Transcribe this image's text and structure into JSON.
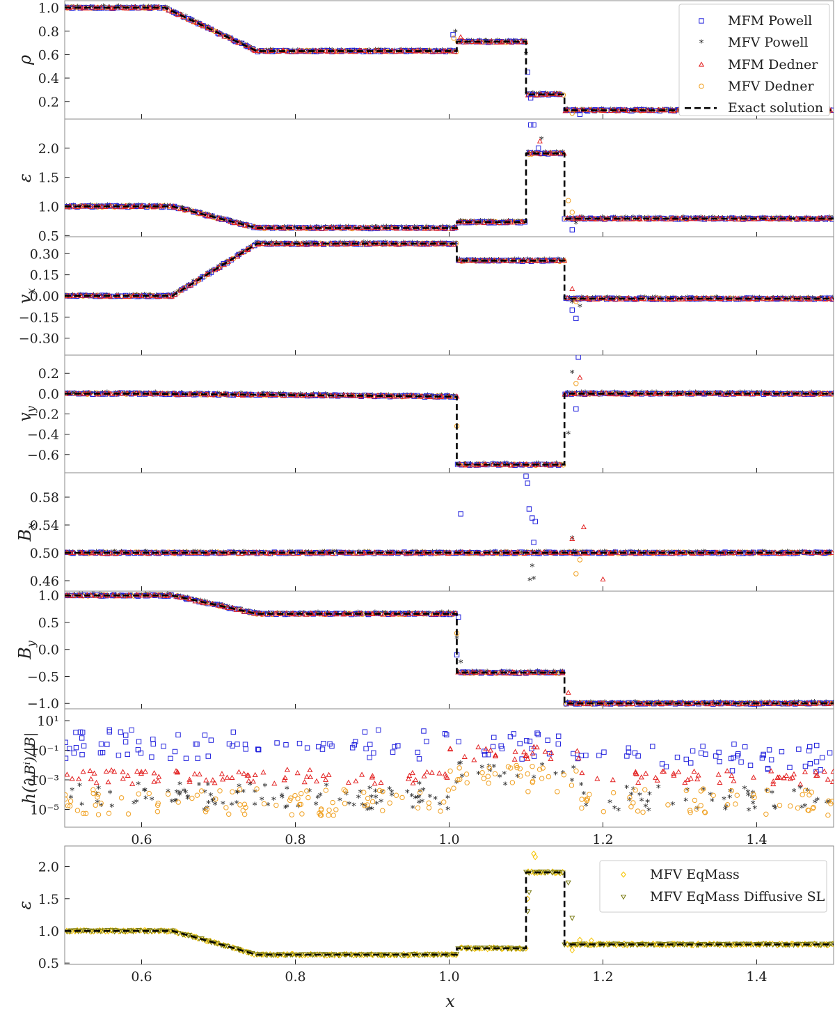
{
  "figure": {
    "xlabel": "x",
    "xlim": [
      0.5,
      1.5
    ],
    "xticks": [
      0.6,
      0.8,
      1.0,
      1.2,
      1.4
    ],
    "xtick_labels": [
      "0.6",
      "0.8",
      "1.0",
      "1.2",
      "1.4"
    ]
  },
  "colors": {
    "mfm_powell": "#2222dd",
    "mfv_powell": "#22dde6",
    "mfm_dedner": "#e32222",
    "mfv_dedner": "#f0a020",
    "exact": "#000000",
    "mfv_eqmass": "#f5c400",
    "mfv_eqmass_diffusive": "#7a7a10",
    "axis": "#888888"
  },
  "legend_top": {
    "placement": "top-right",
    "entries": [
      {
        "label": "MFM Powell",
        "marker": "square",
        "color": "#2222dd"
      },
      {
        "label": "MFV Powell",
        "marker": "star",
        "color": "#22dde6"
      },
      {
        "label": "MFM Dedner",
        "marker": "triangle",
        "color": "#e32222"
      },
      {
        "label": "MFV Dedner",
        "marker": "circle",
        "color": "#f0a020"
      },
      {
        "label": "Exact solution",
        "marker": "dash",
        "color": "#000000"
      }
    ]
  },
  "legend_bottom": {
    "placement": "top-right",
    "entries": [
      {
        "label": "MFV EqMass",
        "marker": "diamond",
        "color": "#f5c400"
      },
      {
        "label": "MFV EqMass Diffusive SL",
        "marker": "triangle-down",
        "color": "#7a7a10"
      }
    ]
  },
  "chart_data": [
    {
      "type": "scatter",
      "id": "rho",
      "ylabel": "ρ",
      "ylim": [
        0.05,
        1.06
      ],
      "yticks": [
        0.2,
        0.4,
        0.6,
        0.8,
        1.0
      ],
      "ytick_labels": [
        "0.2",
        "0.4",
        "0.6",
        "0.8",
        "1.0"
      ],
      "exact": {
        "x": [
          0.5,
          0.63,
          0.75,
          1.01,
          1.01,
          1.1,
          1.1,
          1.15,
          1.15,
          1.5
        ],
        "y": [
          1.0,
          1.0,
          0.63,
          0.63,
          0.71,
          0.71,
          0.26,
          0.26,
          0.125,
          0.125
        ]
      },
      "outliers": [
        {
          "series": "mfm_powell",
          "x": [
            1.005,
            1.102,
            1.106,
            1.17
          ],
          "y": [
            0.77,
            0.45,
            0.23,
            0.09
          ]
        },
        {
          "series": "mfv_powell",
          "x": [
            1.008,
            1.1
          ],
          "y": [
            0.79,
            0.6
          ]
        },
        {
          "series": "mfm_dedner",
          "x": [
            1.015
          ],
          "y": [
            0.75
          ]
        },
        {
          "series": "mfv_dedner",
          "x": [
            1.006,
            1.16
          ],
          "y": [
            0.74,
            0.1
          ]
        }
      ]
    },
    {
      "type": "scatter",
      "id": "eps",
      "ylabel": "ε",
      "ylim": [
        0.48,
        2.5
      ],
      "yticks": [
        0.5,
        1.0,
        1.5,
        2.0
      ],
      "ytick_labels": [
        "0.5",
        "1.0",
        "1.5",
        "2.0"
      ],
      "exact": {
        "x": [
          0.5,
          0.64,
          0.75,
          1.01,
          1.01,
          1.1,
          1.1,
          1.15,
          1.15,
          1.5
        ],
        "y": [
          1.0,
          1.0,
          0.63,
          0.63,
          0.73,
          0.73,
          1.91,
          1.91,
          0.79,
          0.79
        ]
      },
      "outliers": [
        {
          "series": "mfm_powell",
          "x": [
            1.106,
            1.11,
            1.116,
            1.16
          ],
          "y": [
            2.4,
            2.4,
            2.0,
            0.6
          ]
        },
        {
          "series": "mfv_powell",
          "x": [
            1.12,
            1.165
          ],
          "y": [
            2.15,
            0.7
          ]
        },
        {
          "series": "mfm_dedner",
          "x": [
            1.118,
            1.17
          ],
          "y": [
            2.12,
            0.82
          ]
        },
        {
          "series": "mfv_dedner",
          "x": [
            1.155,
            1.16
          ],
          "y": [
            1.1,
            0.9
          ]
        }
      ]
    },
    {
      "type": "scatter",
      "id": "vx",
      "ylabel": "v_x",
      "ylim": [
        -0.42,
        0.42
      ],
      "yticks": [
        -0.3,
        -0.15,
        0.0,
        0.15,
        0.3
      ],
      "ytick_labels": [
        "−0.30",
        "−0.15",
        "0.00",
        "0.15",
        "0.30"
      ],
      "exact": {
        "x": [
          0.5,
          0.64,
          0.75,
          1.01,
          1.01,
          1.15,
          1.15,
          1.5
        ],
        "y": [
          0.0,
          0.0,
          0.37,
          0.37,
          0.25,
          0.25,
          -0.02,
          -0.02
        ]
      },
      "outliers": [
        {
          "series": "mfm_powell",
          "x": [
            1.16,
            1.165
          ],
          "y": [
            -0.1,
            -0.16
          ]
        },
        {
          "series": "mfv_powell",
          "x": [
            1.16,
            1.17
          ],
          "y": [
            -0.05,
            -0.08
          ]
        },
        {
          "series": "mfm_dedner",
          "x": [
            1.16
          ],
          "y": [
            0.05
          ]
        },
        {
          "series": "mfv_dedner",
          "x": [
            1.165
          ],
          "y": [
            -0.04
          ]
        }
      ]
    },
    {
      "type": "scatter",
      "id": "vy",
      "ylabel": "v_y",
      "ylim": [
        -0.78,
        0.38
      ],
      "yticks": [
        -0.6,
        -0.4,
        -0.2,
        0.0,
        0.2
      ],
      "ytick_labels": [
        "−0.6",
        "−0.4",
        "−0.2",
        "0.0",
        "0.2"
      ],
      "exact": {
        "x": [
          0.5,
          0.6,
          1.01,
          1.01,
          1.15,
          1.15,
          1.5
        ],
        "y": [
          0.0,
          0.0,
          -0.03,
          -0.7,
          -0.7,
          0.0,
          0.0
        ]
      },
      "outliers": [
        {
          "series": "mfm_powell",
          "x": [
            1.168,
            1.165
          ],
          "y": [
            0.36,
            -0.15
          ]
        },
        {
          "series": "mfv_powell",
          "x": [
            1.16,
            1.155
          ],
          "y": [
            0.2,
            -0.4
          ]
        },
        {
          "series": "mfm_dedner",
          "x": [
            1.17
          ],
          "y": [
            0.16
          ]
        },
        {
          "series": "mfv_dedner",
          "x": [
            1.165,
            1.01
          ],
          "y": [
            0.1,
            -0.32
          ]
        }
      ]
    },
    {
      "type": "scatter",
      "id": "bx",
      "ylabel": "B_x",
      "ylim": [
        0.445,
        0.615
      ],
      "yticks": [
        0.46,
        0.5,
        0.54,
        0.58
      ],
      "ytick_labels": [
        "0.46",
        "0.50",
        "0.54",
        "0.58"
      ],
      "exact": {
        "x": [
          0.5,
          1.5
        ],
        "y": [
          0.5,
          0.5
        ]
      },
      "outliers": [
        {
          "series": "mfm_powell",
          "x": [
            1.015,
            1.1,
            1.102,
            1.104,
            1.108,
            1.112,
            1.11
          ],
          "y": [
            0.556,
            0.61,
            0.6,
            0.563,
            0.55,
            0.545,
            0.515
          ]
        },
        {
          "series": "mfv_powell",
          "x": [
            1.105,
            1.11,
            1.108,
            1.16
          ],
          "y": [
            0.46,
            0.462,
            0.48,
            0.52
          ]
        },
        {
          "series": "mfm_dedner",
          "x": [
            1.175,
            1.16,
            1.21,
            1.2
          ],
          "y": [
            0.537,
            0.52,
            0.5,
            0.462
          ]
        },
        {
          "series": "mfv_dedner",
          "x": [
            1.165,
            1.17
          ],
          "y": [
            0.47,
            0.49
          ]
        }
      ]
    },
    {
      "type": "scatter",
      "id": "by",
      "ylabel": "B_y",
      "ylim": [
        -1.1,
        1.08
      ],
      "yticks": [
        -1.0,
        -0.5,
        0.0,
        0.5,
        1.0
      ],
      "ytick_labels": [
        "−1.0",
        "−0.5",
        "0.0",
        "0.5",
        "1.0"
      ],
      "exact": {
        "x": [
          0.5,
          0.64,
          0.75,
          1.01,
          1.01,
          1.15,
          1.15,
          1.5
        ],
        "y": [
          1.0,
          1.0,
          0.66,
          0.66,
          -0.43,
          -0.43,
          -1.0,
          -1.0
        ]
      },
      "outliers": [
        {
          "series": "mfm_powell",
          "x": [
            1.01,
            1.012
          ],
          "y": [
            -0.1,
            0.6
          ]
        },
        {
          "series": "mfv_powell",
          "x": [
            1.01,
            1.015
          ],
          "y": [
            0.2,
            -0.25
          ]
        },
        {
          "series": "mfm_dedner",
          "x": [
            1.155
          ],
          "y": [
            -0.8
          ]
        },
        {
          "series": "mfv_dedner",
          "x": [
            1.01
          ],
          "y": [
            0.3
          ]
        }
      ]
    },
    {
      "type": "scatter",
      "id": "divb",
      "ylabel": "h(∂_i B^i)/|B|",
      "yscale": "log",
      "ylim": [
        -6.2,
        1.8
      ],
      "yticks": [
        -5,
        -3,
        -1,
        1
      ],
      "ytick_labels": [
        "10⁻⁵",
        "10⁻³",
        "10⁻¹",
        "10¹"
      ],
      "outliers": []
    },
    {
      "type": "scatter",
      "id": "eps_eqmass",
      "ylabel": "ε",
      "ylim": [
        0.48,
        2.32
      ],
      "yticks": [
        0.5,
        1.0,
        1.5,
        2.0
      ],
      "ytick_labels": [
        "0.5",
        "1.0",
        "1.5",
        "2.0"
      ],
      "exact": {
        "x": [
          0.5,
          0.64,
          0.75,
          1.01,
          1.01,
          1.1,
          1.1,
          1.15,
          1.15,
          1.5
        ],
        "y": [
          1.0,
          1.0,
          0.63,
          0.63,
          0.73,
          0.73,
          1.91,
          1.91,
          0.79,
          0.79
        ]
      },
      "outliers": [
        {
          "series": "mfv_eqmass",
          "x": [
            1.11,
            1.112,
            1.102,
            1.16,
            1.17,
            1.185
          ],
          "y": [
            2.2,
            2.15,
            1.5,
            0.7,
            0.86,
            0.85
          ]
        },
        {
          "series": "mfv_eqmass_diffusive",
          "x": [
            1.102,
            1.104,
            1.155,
            1.16
          ],
          "y": [
            1.3,
            1.6,
            1.75,
            1.2
          ]
        }
      ]
    }
  ]
}
